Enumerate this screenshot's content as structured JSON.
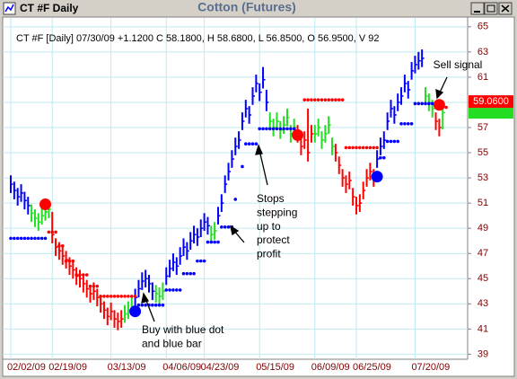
{
  "chart_data": {
    "type": "ohlc",
    "window_title": "CT #F Daily",
    "title": "Cotton (Futures)",
    "info": "CT #F [Daily] 07/30/09 +1.1200 C 58.1800, H 58.6800, L 56.8500, O 56.9500, V 92",
    "categories": [
      "02/02/09",
      null,
      null,
      null,
      null,
      null,
      null,
      null,
      null,
      null,
      null,
      null,
      "02/19/09",
      null,
      null,
      null,
      null,
      null,
      null,
      null,
      null,
      null,
      null,
      null,
      null,
      null,
      null,
      null,
      null,
      "03/13/09",
      null,
      null,
      null,
      null,
      null,
      null,
      null,
      null,
      null,
      null,
      null,
      null,
      null,
      null,
      null,
      "04/06/09",
      null,
      null,
      null,
      null,
      null,
      null,
      null,
      null,
      null,
      null,
      "04/23/09",
      null,
      null,
      null,
      null,
      null,
      null,
      null,
      null,
      null,
      null,
      null,
      null,
      null,
      null,
      null,
      "05/15/09",
      null,
      null,
      null,
      null,
      null,
      null,
      null,
      null,
      null,
      null,
      null,
      null,
      null,
      null,
      null,
      "06/09/09",
      null,
      null,
      null,
      null,
      null,
      null,
      null,
      null,
      null,
      null,
      null,
      "06/25/09",
      null,
      null,
      null,
      null,
      null,
      null,
      null,
      null,
      null,
      null,
      null,
      null,
      null,
      null,
      null,
      null,
      "07/20/09",
      null,
      null,
      null,
      null,
      null,
      null,
      null,
      null
    ],
    "high": [
      53.2,
      52.7,
      52.2,
      52.5,
      51.9,
      51.5,
      50.9,
      50.5,
      50.2,
      50.7,
      51,
      51.2,
      50.3,
      48.2,
      47.9,
      47.5,
      47.2,
      46.7,
      46.4,
      45.9,
      45.7,
      45.3,
      44.9,
      44.5,
      44.7,
      44.2,
      43.7,
      43.2,
      42.7,
      43.1,
      42.5,
      42.3,
      42.5,
      42.9,
      43.2,
      43.5,
      44.2,
      44.9,
      45.5,
      45.7,
      45.3,
      44.7,
      44.5,
      44.3,
      44.7,
      45.9,
      46.5,
      47,
      46.7,
      47.5,
      48.2,
      47.9,
      48.7,
      49.2,
      49,
      49.7,
      50.2,
      49.9,
      49.2,
      49.5,
      50.7,
      51.7,
      53.2,
      54.2,
      55.2,
      56.2,
      56.7,
      58.2,
      59.2,
      58.7,
      60.2,
      61.2,
      60.5,
      61.8,
      60,
      58.2,
      57.7,
      58.2,
      57.5,
      57.9,
      58.5,
      57.2,
      57.7,
      57.2,
      56.2,
      56.7,
      58.5,
      57.2,
      57.2,
      57.7,
      56.7,
      57.2,
      57.9,
      56.2,
      55.7,
      54.7,
      53.7,
      53.2,
      53.5,
      52.2,
      51.5,
      51.7,
      52.7,
      53.7,
      54.2,
      53.7,
      55.2,
      56.2,
      56.7,
      58.2,
      59.2,
      58.7,
      59.7,
      60.2,
      61.2,
      60.7,
      62.2,
      62.7,
      63,
      63.2,
      60.2,
      59.7,
      59.2,
      58.2,
      57.7,
      58.68
    ],
    "low": [
      51.8,
      51.3,
      50.8,
      51.1,
      50.5,
      50.1,
      49.5,
      49.1,
      48.8,
      49.3,
      49.6,
      49.8,
      47.8,
      46.8,
      46.5,
      46.1,
      45.8,
      45.3,
      45,
      44.5,
      44.3,
      43.9,
      43.5,
      43.1,
      43.3,
      42.8,
      42.3,
      41.8,
      41.3,
      41.7,
      41.1,
      40.9,
      41.1,
      41.5,
      41.8,
      42.1,
      42.8,
      43.5,
      44.1,
      44.3,
      43.9,
      43.3,
      43.1,
      42.9,
      43.3,
      44.5,
      45.1,
      45.6,
      45.3,
      46.1,
      46.8,
      46.5,
      47.3,
      47.8,
      47.6,
      48.3,
      48.8,
      48.5,
      47.8,
      48.1,
      49.3,
      50.3,
      51.8,
      52.8,
      53.8,
      54.8,
      55.3,
      56.8,
      57.8,
      57.3,
      58.8,
      59.8,
      59.1,
      60.1,
      58.3,
      56.8,
      56.3,
      56.8,
      56.1,
      56.5,
      57.1,
      55.8,
      56.3,
      55.8,
      54.8,
      55.3,
      54.3,
      55.8,
      55.8,
      56.3,
      55.3,
      55.8,
      56.5,
      54.8,
      54.3,
      53.3,
      52.3,
      51.8,
      52.1,
      50.8,
      50.1,
      50.3,
      51.3,
      52.3,
      52.8,
      52.3,
      53.8,
      54.8,
      55.3,
      56.8,
      57.8,
      57.3,
      58.3,
      58.8,
      59.8,
      59.3,
      60.8,
      61.3,
      61.6,
      61.8,
      58.8,
      58.3,
      57.8,
      56.8,
      56.3,
      56.85
    ],
    "close": [
      52.5,
      52,
      51.5,
      51.8,
      51.2,
      50.8,
      50.2,
      49.8,
      49.5,
      50,
      50.3,
      50.5,
      48.5,
      47.5,
      47.2,
      46.8,
      46.5,
      46,
      45.7,
      45.2,
      45,
      44.6,
      44.2,
      43.8,
      44,
      43.5,
      43,
      42.5,
      42,
      42.4,
      41.8,
      41.6,
      41.8,
      42.2,
      42.5,
      42.8,
      43.5,
      44.2,
      44.8,
      45,
      44.6,
      44,
      43.8,
      43.6,
      44,
      45.2,
      45.8,
      46.3,
      46,
      46.8,
      47.5,
      47.2,
      48,
      48.5,
      48.3,
      49,
      49.5,
      49.2,
      48.5,
      48.8,
      50,
      51,
      52.5,
      53.5,
      54.5,
      55.5,
      56,
      57.5,
      58.5,
      58,
      59.5,
      60.5,
      59.8,
      60.8,
      59,
      57.5,
      57,
      57.5,
      56.8,
      57.2,
      57.8,
      56.5,
      57,
      56.5,
      55.5,
      56,
      55,
      56.5,
      56.5,
      57,
      56,
      56.5,
      57.2,
      55.5,
      55,
      54,
      53,
      52.5,
      52.8,
      51.5,
      50.8,
      51,
      52,
      53,
      53.5,
      53,
      54.5,
      55.5,
      56,
      57.5,
      58.5,
      58,
      59,
      59.5,
      60.5,
      60,
      61.5,
      62,
      62.3,
      62.5,
      59.5,
      59,
      58.5,
      57.5,
      57,
      58.18
    ],
    "bar_colors": [
      "#0000ff",
      "#0000ff",
      "#0000ff",
      "#0000ff",
      "#0000ff",
      "#0000ff",
      "#22dd22",
      "#22dd22",
      "#22dd22",
      "#22dd22",
      "#22dd22",
      "#22dd22",
      "#ff0000",
      "#ff0000",
      "#ff0000",
      "#ff0000",
      "#ff0000",
      "#ff0000",
      "#ff0000",
      "#ff0000",
      "#ff0000",
      "#ff0000",
      "#ff0000",
      "#ff0000",
      "#ff0000",
      "#ff0000",
      "#ff0000",
      "#ff0000",
      "#ff0000",
      "#ff0000",
      "#ff0000",
      "#ff0000",
      "#ff0000",
      "#22dd22",
      "#22dd22",
      "#22dd22",
      "#0000ff",
      "#0000ff",
      "#0000ff",
      "#0000ff",
      "#0000ff",
      "#0000ff",
      "#22dd22",
      "#22dd22",
      "#22dd22",
      "#0000ff",
      "#0000ff",
      "#0000ff",
      "#0000ff",
      "#0000ff",
      "#0000ff",
      "#0000ff",
      "#0000ff",
      "#0000ff",
      "#0000ff",
      "#0000ff",
      "#0000ff",
      "#0000ff",
      "#22dd22",
      "#22dd22",
      "#0000ff",
      "#0000ff",
      "#0000ff",
      "#0000ff",
      "#0000ff",
      "#0000ff",
      "#0000ff",
      "#0000ff",
      "#0000ff",
      "#0000ff",
      "#0000ff",
      "#0000ff",
      "#0000ff",
      "#0000ff",
      "#0000ff",
      "#22dd22",
      "#22dd22",
      "#22dd22",
      "#22dd22",
      "#22dd22",
      "#22dd22",
      "#22dd22",
      "#22dd22",
      "#ff0000",
      "#ff0000",
      "#ff0000",
      "#ff0000",
      "#ff0000",
      "#22dd22",
      "#22dd22",
      "#22dd22",
      "#22dd22",
      "#22dd22",
      "#22dd22",
      "#ff0000",
      "#ff0000",
      "#ff0000",
      "#ff0000",
      "#ff0000",
      "#ff0000",
      "#ff0000",
      "#ff0000",
      "#ff0000",
      "#ff0000",
      "#ff0000",
      "#ff0000",
      "#0000ff",
      "#0000ff",
      "#0000ff",
      "#0000ff",
      "#0000ff",
      "#0000ff",
      "#0000ff",
      "#0000ff",
      "#0000ff",
      "#0000ff",
      "#0000ff",
      "#0000ff",
      "#0000ff",
      "#0000ff",
      "#22dd22",
      "#22dd22",
      "#22dd22",
      "#ff0000",
      "#ff0000",
      "#22dd22"
    ],
    "long_stops": {
      "color": "#0000ff",
      "values": [
        48.2,
        48.2,
        48.2,
        48.2,
        48.2,
        48.2,
        48.2,
        48.2,
        48.2,
        48.2,
        48.2,
        null,
        null,
        null,
        null,
        null,
        null,
        null,
        null,
        null,
        null,
        null,
        null,
        null,
        null,
        null,
        null,
        null,
        null,
        null,
        null,
        null,
        null,
        null,
        null,
        null,
        null,
        42.9,
        42.9,
        42.9,
        42.9,
        42.9,
        42.9,
        42.9,
        42.9,
        44.1,
        44.1,
        44.1,
        44.1,
        44.1,
        45.4,
        45.4,
        45.4,
        45.4,
        46.4,
        46.4,
        46.4,
        47.9,
        47.9,
        47.9,
        47.9,
        49.1,
        49.1,
        49.1,
        49.1,
        51.3,
        null,
        53.9,
        55.7,
        55.7,
        55.7,
        55.7,
        56.9,
        56.9,
        56.9,
        56.9,
        56.9,
        56.9,
        56.9,
        56.9,
        56.9,
        56.9,
        56.9,
        null,
        null,
        null,
        null,
        null,
        null,
        null,
        null,
        null,
        null,
        null,
        null,
        null,
        null,
        null,
        null,
        null,
        null,
        null,
        null,
        null,
        null,
        null,
        null,
        54.6,
        54.6,
        55.9,
        55.9,
        55.9,
        55.9,
        57.3,
        57.3,
        57.3,
        57.3,
        58.9,
        58.9,
        58.9,
        58.9,
        58.9,
        58.9,
        null,
        null,
        null
      ]
    },
    "short_stops": {
      "color": "#ff0000",
      "values": [
        null,
        null,
        null,
        null,
        null,
        null,
        null,
        null,
        null,
        null,
        null,
        48.7,
        48.7,
        48.7,
        47.6,
        47.6,
        46.4,
        46.4,
        46.4,
        45.3,
        45.3,
        45.3,
        45.3,
        44.4,
        44.4,
        44.4,
        43.6,
        43.6,
        43.6,
        43.6,
        43.6,
        43.6,
        43.6,
        43.6,
        43.6,
        43.6,
        43.6,
        null,
        null,
        null,
        null,
        null,
        null,
        null,
        null,
        null,
        null,
        null,
        null,
        null,
        null,
        null,
        null,
        null,
        null,
        null,
        null,
        null,
        null,
        null,
        null,
        null,
        null,
        null,
        null,
        null,
        null,
        null,
        null,
        null,
        null,
        null,
        null,
        null,
        null,
        null,
        null,
        null,
        null,
        null,
        null,
        null,
        null,
        null,
        null,
        59.2,
        59.2,
        59.2,
        59.2,
        59.2,
        59.2,
        59.2,
        59.2,
        59.2,
        59.2,
        59.2,
        59.2,
        55.4,
        55.4,
        55.4,
        55.4,
        55.4,
        55.4,
        55.4,
        55.4,
        55.4,
        55.4,
        null,
        null,
        null,
        null,
        null,
        null,
        null,
        null,
        null,
        null,
        null,
        null,
        null,
        null,
        null,
        null,
        null,
        null,
        null,
        58.6
      ]
    },
    "buy_signals": {
      "color": "#0000ff",
      "values": [
        null,
        null,
        null,
        null,
        null,
        null,
        null,
        null,
        null,
        null,
        null,
        null,
        null,
        null,
        null,
        null,
        null,
        null,
        null,
        null,
        null,
        null,
        null,
        null,
        null,
        null,
        null,
        null,
        null,
        null,
        null,
        null,
        null,
        null,
        null,
        null,
        42.4,
        null,
        null,
        null,
        null,
        null,
        null,
        null,
        null,
        null,
        null,
        null,
        null,
        null,
        null,
        null,
        null,
        null,
        null,
        null,
        null,
        null,
        null,
        null,
        null,
        null,
        null,
        null,
        null,
        null,
        null,
        null,
        null,
        null,
        null,
        null,
        null,
        null,
        null,
        null,
        null,
        null,
        null,
        null,
        null,
        null,
        null,
        null,
        null,
        null,
        null,
        null,
        null,
        null,
        null,
        null,
        null,
        null,
        null,
        null,
        null,
        null,
        null,
        null,
        null,
        null,
        null,
        null,
        null,
        null,
        53.1,
        null,
        null,
        null,
        null,
        null,
        null,
        null,
        null,
        null,
        null,
        null,
        null,
        null,
        null,
        null,
        null,
        null,
        null
      ]
    },
    "sell_signals": {
      "color": "#ff0000",
      "values": [
        null,
        null,
        null,
        null,
        null,
        null,
        null,
        null,
        null,
        null,
        50.9,
        null,
        null,
        null,
        null,
        null,
        null,
        null,
        null,
        null,
        null,
        null,
        null,
        null,
        null,
        null,
        null,
        null,
        null,
        null,
        null,
        null,
        null,
        null,
        null,
        null,
        null,
        null,
        null,
        null,
        null,
        null,
        null,
        null,
        null,
        null,
        null,
        null,
        null,
        null,
        null,
        null,
        null,
        null,
        null,
        null,
        null,
        null,
        null,
        null,
        null,
        null,
        null,
        null,
        null,
        null,
        null,
        null,
        null,
        null,
        null,
        null,
        null,
        null,
        null,
        null,
        null,
        null,
        null,
        null,
        null,
        null,
        null,
        56.4,
        null,
        null,
        null,
        null,
        null,
        null,
        null,
        null,
        null,
        null,
        null,
        null,
        null,
        null,
        null,
        null,
        null,
        null,
        null,
        null,
        null,
        null,
        null,
        null,
        null,
        null,
        null,
        null,
        null,
        null,
        null,
        null,
        null,
        null,
        null,
        null,
        null,
        null,
        null,
        null,
        58.8,
        null
      ]
    },
    "last_price": {
      "value": 59.06,
      "label": "59.0600",
      "color": "#ff0000"
    },
    "annotations": [
      [
        "Sell signal"
      ],
      [
        "Stops",
        "stepping",
        "up to",
        "protect",
        "profit"
      ],
      [
        "Buy with blue dot",
        "and blue bar"
      ]
    ],
    "ylim": [
      38.6,
      65.7
    ],
    "yticks": [
      39,
      41,
      43,
      45,
      47,
      49,
      51,
      53,
      55,
      57,
      59,
      61,
      63,
      65
    ],
    "grid": true
  }
}
